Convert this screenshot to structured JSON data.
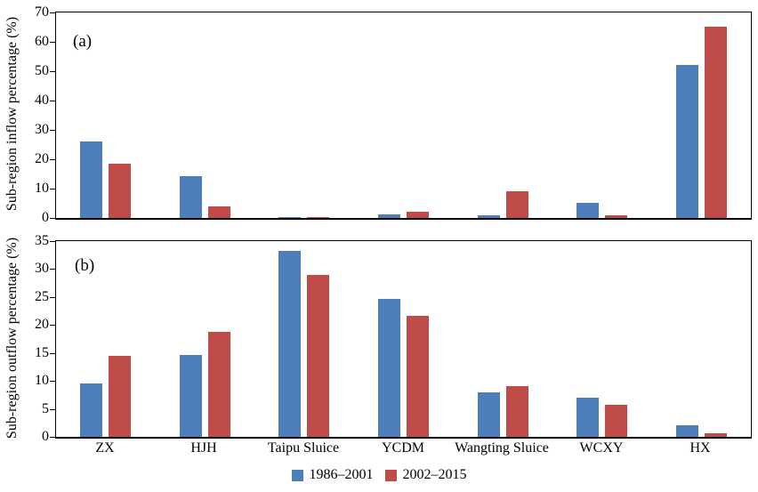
{
  "figure": {
    "background": "#ffffff",
    "axis_color": "#000000"
  },
  "legend": {
    "items": [
      {
        "label": "1986–2001",
        "color": "#4D7EBB"
      },
      {
        "label": "2002–2015",
        "color": "#BF4C49"
      }
    ]
  },
  "chart_data": [
    {
      "type": "bar",
      "panel_label": "(a)",
      "ylabel": "Sub-region inflow percentage (%)",
      "xlabel": "",
      "categories": [
        "ZX",
        "HJH",
        "Taipu Sluice",
        "YCDM",
        "Wangting Sluice",
        "WCXY",
        "HX"
      ],
      "series": [
        {
          "name": "1986–2001",
          "color": "#4D7EBB",
          "values": [
            26.2,
            14.1,
            0.4,
            1.1,
            0.9,
            5.0,
            52.0
          ]
        },
        {
          "name": "2002–2015",
          "color": "#BF4C49",
          "values": [
            18.4,
            3.9,
            0.4,
            2.2,
            9.0,
            0.9,
            65.0
          ]
        }
      ],
      "ylim": [
        0,
        70
      ],
      "yticks": [
        0,
        10,
        20,
        30,
        40,
        50,
        60,
        70
      ],
      "grid": false,
      "show_x_labels": false,
      "legend_position": "bottom-center-shared"
    },
    {
      "type": "bar",
      "panel_label": "(b)",
      "ylabel": "Sub-region outflow percentage (%)",
      "xlabel": "",
      "categories": [
        "ZX",
        "HJH",
        "Taipu Sluice",
        "YCDM",
        "Wangting Sluice",
        "WCXY",
        "HX"
      ],
      "series": [
        {
          "name": "1986–2001",
          "color": "#4D7EBB",
          "values": [
            9.5,
            14.7,
            33.2,
            24.7,
            8.0,
            7.0,
            2.0
          ]
        },
        {
          "name": "2002–2015",
          "color": "#BF4C49",
          "values": [
            14.4,
            18.7,
            29.0,
            21.7,
            9.1,
            5.8,
            0.7
          ]
        }
      ],
      "ylim": [
        0,
        35
      ],
      "yticks": [
        0,
        5,
        10,
        15,
        20,
        25,
        30,
        35
      ],
      "grid": false,
      "show_x_labels": true,
      "legend_position": "bottom-center-shared"
    }
  ]
}
